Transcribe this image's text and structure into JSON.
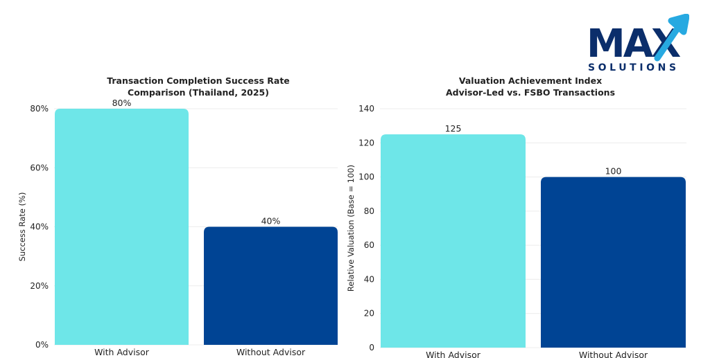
{
  "brand": {
    "logo_text": "MAX",
    "logo_subtext": "SOLUTIONS",
    "colors": {
      "navy": "#0b2e6b",
      "accent": "#27a9e1"
    }
  },
  "colors": {
    "with_advisor": "#6ee6e8",
    "without_advisor": "#004494",
    "grid": "#ececec",
    "text": "#222222"
  },
  "chart_data": [
    {
      "type": "bar",
      "title_lines": [
        "Transaction Completion Success Rate",
        "Comparison (Thailand, 2025)"
      ],
      "xlabel": "",
      "ylabel": "Success Rate (%)",
      "categories": [
        "With Advisor",
        "Without Advisor"
      ],
      "values": [
        80,
        40
      ],
      "value_labels": [
        "80%",
        "40%"
      ],
      "ylim": [
        0,
        80
      ],
      "yticks": [
        0,
        20,
        40,
        60,
        80
      ],
      "ytick_labels": [
        "0%",
        "20%",
        "40%",
        "60%",
        "80%"
      ],
      "grid": true
    },
    {
      "type": "bar",
      "title_lines": [
        "Valuation Achievement Index",
        "Advisor-Led vs. FSBO Transactions"
      ],
      "xlabel": "",
      "ylabel": "Relative Valuation (Base = 100)",
      "categories": [
        "With Advisor",
        "Without Advisor"
      ],
      "values": [
        125,
        100
      ],
      "value_labels": [
        "125",
        "100"
      ],
      "ylim": [
        0,
        140
      ],
      "yticks": [
        0,
        20,
        40,
        60,
        80,
        100,
        120,
        140
      ],
      "ytick_labels": [
        "0",
        "20",
        "40",
        "60",
        "80",
        "100",
        "120",
        "140"
      ],
      "grid": true
    }
  ]
}
